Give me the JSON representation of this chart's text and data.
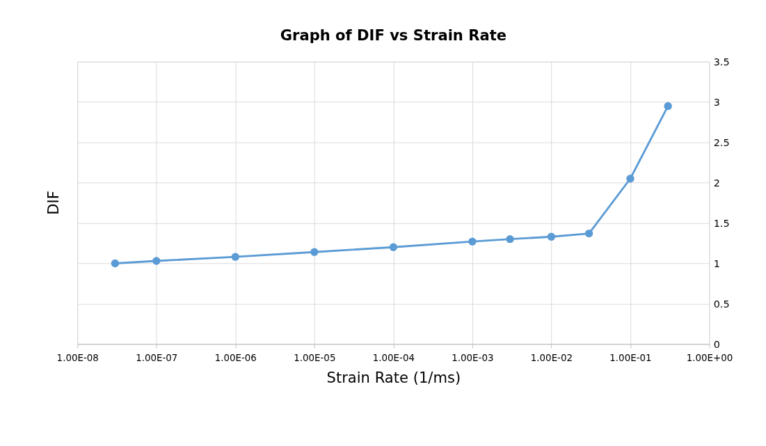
{
  "chart_data": {
    "type": "line",
    "title": "Graph of DIF vs Strain Rate",
    "xlabel": "Strain Rate (1/ms)",
    "ylabel": "DIF",
    "x": [
      3e-08,
      1e-07,
      1e-06,
      1e-05,
      0.0001,
      0.001,
      0.003,
      0.01,
      0.03,
      0.1,
      0.3
    ],
    "series": [
      {
        "color": "#5b9bd5",
        "values": [
          1.0,
          1.03,
          1.08,
          1.14,
          1.2,
          1.27,
          1.3,
          1.33,
          1.37,
          2.05,
          2.95
        ]
      }
    ],
    "log": "x",
    "xlim": [
      1e-08,
      1
    ],
    "ylim": [
      0,
      3.5
    ],
    "xticks": [
      {
        "value": 1e-08,
        "label": "1.00E-08"
      },
      {
        "value": 1e-07,
        "label": "1.00E-07"
      },
      {
        "value": 1e-06,
        "label": "1.00E-06"
      },
      {
        "value": 1e-05,
        "label": "1.00E-05"
      },
      {
        "value": 0.0001,
        "label": "1.00E-04"
      },
      {
        "value": 0.001,
        "label": "1.00E-03"
      },
      {
        "value": 0.01,
        "label": "1.00E-02"
      },
      {
        "value": 0.1,
        "label": "1.00E-01"
      },
      {
        "value": 1,
        "label": "1.00E+00"
      }
    ],
    "yticks": [
      0,
      0.5,
      1,
      1.5,
      2,
      2.5,
      3,
      3.5
    ],
    "grid": true,
    "marker": "circle",
    "line_style": "solid"
  }
}
